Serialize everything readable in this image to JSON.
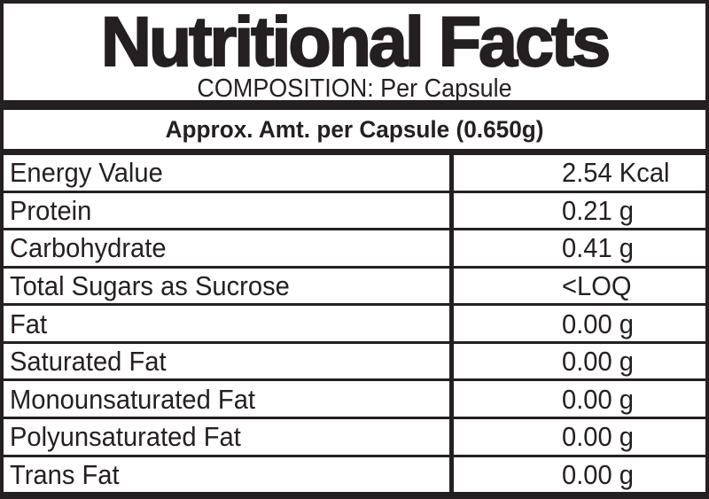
{
  "label": {
    "title": "Nutritional Facts",
    "subtitle": "COMPOSITION: Per Capsule",
    "column_header": "Approx. Amt. per Capsule (0.650g)",
    "rows": [
      {
        "name": "Energy Value",
        "amount": "2.54 Kcal"
      },
      {
        "name": "Protein",
        "amount": "0.21 g"
      },
      {
        "name": "Carbohydrate",
        "amount": "0.41 g"
      },
      {
        "name": "Total Sugars as Sucrose",
        "amount": "<LOQ"
      },
      {
        "name": "Fat",
        "amount": "0.00 g"
      },
      {
        "name": "Saturated Fat",
        "amount": "0.00 g"
      },
      {
        "name": "Monounsaturated Fat",
        "amount": "0.00 g"
      },
      {
        "name": "Polyunsaturated Fat",
        "amount": "0.00 g"
      },
      {
        "name": "Trans Fat",
        "amount": "0.00 g"
      }
    ],
    "colors": {
      "ink": "#241f20",
      "background": "#ffffff"
    }
  }
}
